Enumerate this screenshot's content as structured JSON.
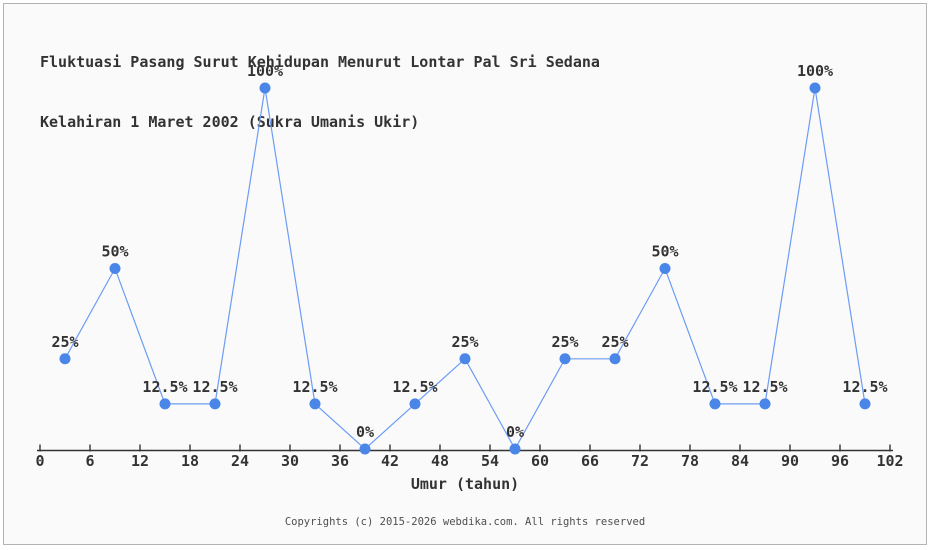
{
  "window": {
    "background_color": "#fafafa",
    "border_color": "#b3b3b3"
  },
  "chart": {
    "title_line1": "Fluktuasi Pasang Surut Kehidupan Menurut Lontar Pal Sri Sedana",
    "title_line2": "Kelahiran 1 Maret 2002 (Sukra Umanis Ukir)",
    "xlabel": "Umur (tahun)",
    "footer": "Copyrights (c) 2015-2026 webdika.com. All rights reserved"
  },
  "chart_data": {
    "type": "line",
    "title": "Fluktuasi Pasang Surut Kehidupan Menurut Lontar Pal Sri Sedana Kelahiran 1 Maret 2002 (Sukra Umanis Ukir)",
    "xlabel": "Umur (tahun)",
    "ylabel": "",
    "x": [
      3,
      9,
      15,
      21,
      27,
      33,
      39,
      45,
      51,
      57,
      63,
      69,
      75,
      81,
      87,
      93,
      99
    ],
    "values": [
      25,
      50,
      12.5,
      12.5,
      100,
      12.5,
      0,
      12.5,
      25,
      0,
      25,
      25,
      50,
      12.5,
      12.5,
      100,
      12.5
    ],
    "point_labels": [
      "25%",
      "50%",
      "12.5%",
      "12.5%",
      "100%",
      "12.5%",
      "0%",
      "12.5%",
      "25%",
      "0%",
      "25%",
      "25%",
      "50%",
      "12.5%",
      "12.5%",
      "100%",
      "12.5%"
    ],
    "x_ticks": [
      0,
      6,
      12,
      18,
      24,
      30,
      36,
      42,
      48,
      54,
      60,
      66,
      72,
      78,
      84,
      90,
      96,
      102
    ],
    "xlim": [
      0,
      102
    ],
    "ylim": [
      0,
      100
    ],
    "grid": false,
    "legend": null,
    "colors": {
      "line": "#6c9cf5",
      "marker": "#4a86e8",
      "text": "#333333",
      "axis": "#333333",
      "tick_label": "#333333"
    }
  }
}
